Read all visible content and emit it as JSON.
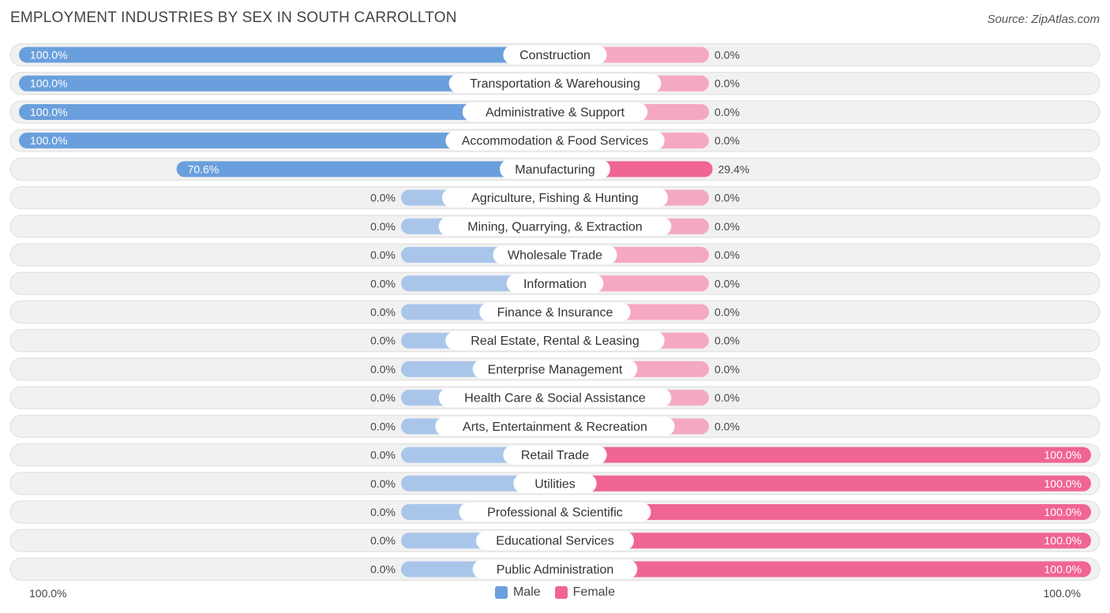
{
  "title": "EMPLOYMENT INDUSTRIES BY SEX IN SOUTH CARROLLTON",
  "source": "Source: ZipAtlas.com",
  "colors": {
    "male": "#6a9fdd",
    "male_light": "#a9c6ea",
    "female": "#f06592",
    "female_light": "#f5a8c1",
    "row_bg": "#f1f1f1",
    "row_border": "#dddddd"
  },
  "legend": {
    "male": "Male",
    "female": "Female"
  },
  "axis": {
    "left_label": "100.0%",
    "right_label": "100.0%"
  },
  "chart_data": {
    "type": "bar",
    "orientation": "horizontal-diverging",
    "title": "EMPLOYMENT INDUSTRIES BY SEX IN SOUTH CARROLLTON",
    "categories": [
      "Construction",
      "Transportation & Warehousing",
      "Administrative & Support",
      "Accommodation & Food Services",
      "Manufacturing",
      "Agriculture, Fishing & Hunting",
      "Mining, Quarrying, & Extraction",
      "Wholesale Trade",
      "Information",
      "Finance & Insurance",
      "Real Estate, Rental & Leasing",
      "Enterprise Management",
      "Health Care & Social Assistance",
      "Arts, Entertainment & Recreation",
      "Retail Trade",
      "Utilities",
      "Professional & Scientific",
      "Educational Services",
      "Public Administration"
    ],
    "series": [
      {
        "name": "Male",
        "values": [
          100.0,
          100.0,
          100.0,
          100.0,
          70.6,
          0.0,
          0.0,
          0.0,
          0.0,
          0.0,
          0.0,
          0.0,
          0.0,
          0.0,
          0.0,
          0.0,
          0.0,
          0.0,
          0.0
        ],
        "labels": [
          "100.0%",
          "100.0%",
          "100.0%",
          "100.0%",
          "70.6%",
          "0.0%",
          "0.0%",
          "0.0%",
          "0.0%",
          "0.0%",
          "0.0%",
          "0.0%",
          "0.0%",
          "0.0%",
          "0.0%",
          "0.0%",
          "0.0%",
          "0.0%",
          "0.0%"
        ]
      },
      {
        "name": "Female",
        "values": [
          0.0,
          0.0,
          0.0,
          0.0,
          29.4,
          0.0,
          0.0,
          0.0,
          0.0,
          0.0,
          0.0,
          0.0,
          0.0,
          0.0,
          100.0,
          100.0,
          100.0,
          100.0,
          100.0
        ],
        "labels": [
          "0.0%",
          "0.0%",
          "0.0%",
          "0.0%",
          "29.4%",
          "0.0%",
          "0.0%",
          "0.0%",
          "0.0%",
          "0.0%",
          "0.0%",
          "0.0%",
          "0.0%",
          "0.0%",
          "100.0%",
          "100.0%",
          "100.0%",
          "100.0%",
          "100.0%"
        ]
      }
    ],
    "xlim": [
      0,
      100
    ],
    "legend_position": "bottom-center",
    "grid": false
  }
}
